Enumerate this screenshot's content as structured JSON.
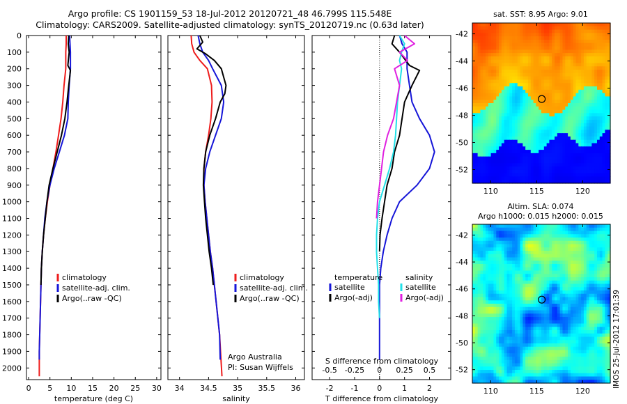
{
  "header": {
    "line1": "Argo profile: CS 1901159_53 18-Jul-2012 20120721_48 46.799S 115.548E",
    "line2": "Climatology: CARS2009. Satellite-adjusted climatology: synTS_20120719.nc (0.63d later)"
  },
  "stamp": "IMOS 25-Jul-2012 17:01:39",
  "colors": {
    "climatology": "#ee1c1c",
    "satellite": "#1515d8",
    "argo": "#000000",
    "sal_satellite": "#22e0e8",
    "sal_argo": "#e020e0"
  },
  "chart_data": [
    {
      "type": "line",
      "name": "temperature-panel",
      "xlabel": "temperature (deg C)",
      "ylabel": "",
      "xlim": [
        -0.5,
        31
      ],
      "ylim": [
        2070,
        0
      ],
      "xticks": [
        0,
        5,
        10,
        15,
        20,
        25,
        30
      ],
      "yticks": [
        0,
        100,
        200,
        300,
        400,
        500,
        600,
        700,
        800,
        900,
        1000,
        1100,
        1200,
        1300,
        1400,
        1500,
        1600,
        1700,
        1800,
        1900,
        2000
      ],
      "legend": [
        "climatology",
        "satellite-adj. clim.",
        "Argo(..raw -QC)"
      ],
      "series": [
        {
          "name": "climatology",
          "color": "#ee1c1c",
          "x": [
            8.8,
            8.8,
            8.7,
            8.7,
            8.3,
            8.0,
            7.6,
            7.0,
            6.4,
            5.7,
            5.0,
            4.4,
            3.9,
            3.5,
            3.2,
            3.0,
            2.9,
            2.8,
            2.7,
            2.6,
            2.5,
            2.5
          ],
          "y": [
            0,
            50,
            100,
            200,
            300,
            400,
            500,
            600,
            700,
            800,
            900,
            1000,
            1100,
            1200,
            1300,
            1400,
            1500,
            1600,
            1700,
            1800,
            1900,
            2050
          ]
        },
        {
          "name": "satellite-adj. clim.",
          "color": "#1515d8",
          "x": [
            9.6,
            9.7,
            9.8,
            9.8,
            9.5,
            9.3,
            9.2,
            8.4,
            7.2,
            6.0,
            5.0,
            4.3,
            3.8,
            3.5,
            3.2,
            3.0,
            2.9,
            2.8,
            2.7,
            2.6,
            2.5,
            2.5
          ],
          "y": [
            0,
            50,
            100,
            200,
            300,
            400,
            500,
            600,
            700,
            800,
            900,
            1000,
            1100,
            1200,
            1300,
            1400,
            1500,
            1600,
            1700,
            1800,
            1900,
            1950
          ]
        },
        {
          "name": "Argo(..raw -QC)",
          "color": "#000000",
          "x": [
            9.4,
            9.3,
            9.5,
            9.2,
            9.6,
            9.8,
            9.4,
            9.0,
            8.5,
            7.7,
            6.7,
            5.7,
            4.8,
            4.3,
            3.9,
            3.5,
            3.2,
            3.0,
            2.9
          ],
          "y": [
            0,
            50,
            100,
            180,
            200,
            210,
            300,
            400,
            500,
            600,
            700,
            800,
            900,
            1000,
            1100,
            1200,
            1300,
            1400,
            1500
          ]
        }
      ]
    },
    {
      "type": "line",
      "name": "salinity-panel",
      "xlabel": "salinity",
      "ylabel": "",
      "xlim": [
        33.8,
        36.15
      ],
      "ylim": [
        2070,
        0
      ],
      "xticks": [
        34,
        34.5,
        35,
        35.5,
        36
      ],
      "legend": [
        "climatology",
        "satellite-adj. clim.",
        "Argo(..raw -QC)"
      ],
      "series": [
        {
          "name": "climatology",
          "color": "#ee1c1c",
          "x": [
            34.2,
            34.21,
            34.25,
            34.35,
            34.48,
            34.55,
            34.56,
            34.54,
            34.5,
            34.45,
            34.42,
            34.42,
            34.44,
            34.47,
            34.5,
            34.53,
            34.57,
            34.6,
            34.63,
            34.66,
            34.69,
            34.73
          ],
          "y": [
            0,
            50,
            100,
            150,
            200,
            300,
            400,
            500,
            600,
            700,
            800,
            900,
            1000,
            1100,
            1200,
            1300,
            1400,
            1500,
            1600,
            1700,
            1800,
            2050
          ]
        },
        {
          "name": "satellite-adj. clim.",
          "color": "#1515d8",
          "x": [
            34.32,
            34.35,
            34.4,
            34.5,
            34.57,
            34.72,
            34.76,
            34.72,
            34.62,
            34.52,
            34.45,
            34.42,
            34.44,
            34.47,
            34.5,
            34.53,
            34.57,
            34.6,
            34.63,
            34.66,
            34.69,
            34.7
          ],
          "y": [
            0,
            50,
            100,
            150,
            200,
            300,
            400,
            500,
            600,
            700,
            800,
            900,
            1000,
            1100,
            1200,
            1300,
            1400,
            1500,
            1600,
            1700,
            1800,
            1950
          ]
        },
        {
          "name": "Argo(..raw -QC)",
          "color": "#000000",
          "x": [
            34.35,
            34.4,
            34.3,
            34.45,
            34.6,
            34.72,
            34.8,
            34.78,
            34.7,
            34.62,
            34.52,
            34.45,
            34.42,
            34.41,
            34.43,
            34.45,
            34.48,
            34.51,
            34.55,
            34.58
          ],
          "y": [
            0,
            40,
            80,
            110,
            150,
            200,
            300,
            350,
            400,
            500,
            600,
            700,
            800,
            900,
            1000,
            1100,
            1200,
            1300,
            1400,
            1500
          ]
        }
      ]
    },
    {
      "type": "line",
      "name": "difference-panel",
      "xlabel": "T difference from climatology",
      "x2label": "S difference from climatology",
      "xlim": [
        -2.7,
        2.85
      ],
      "ylim": [
        2070,
        0
      ],
      "xticks": [
        -2,
        -1,
        0,
        1,
        2
      ],
      "x2ticks": [
        -0.5,
        -0.25,
        0,
        0.25,
        0.5
      ],
      "legend_temperature": {
        "title": "temperature",
        "items": [
          "satellite",
          "Argo(-adj)"
        ]
      },
      "legend_salinity": {
        "title": "salinity",
        "items": [
          "satellite",
          "Argo(-adj)"
        ]
      },
      "series": [
        {
          "name": "temperature satellite",
          "color": "#1515d8",
          "x": [
            0.8,
            0.9,
            1.1,
            1.1,
            1.2,
            1.3,
            1.6,
            2.0,
            2.2,
            2.0,
            1.5,
            0.8,
            0.5,
            0.3,
            0.15,
            0.05,
            0.0,
            0.0,
            0.0,
            0.0,
            0.0,
            0.0
          ],
          "y": [
            0,
            50,
            100,
            200,
            300,
            400,
            500,
            600,
            700,
            800,
            900,
            1000,
            1100,
            1200,
            1300,
            1400,
            1500,
            1600,
            1700,
            1800,
            1900,
            1950
          ]
        },
        {
          "name": "temperature Argo(-adj)",
          "color": "#000000",
          "x": [
            0.6,
            0.5,
            0.8,
            1.2,
            1.6,
            1.3,
            1.0,
            0.9,
            0.8,
            0.6,
            0.5,
            0.3,
            0.2,
            0.1,
            0.02,
            0.0
          ],
          "y": [
            0,
            50,
            100,
            180,
            210,
            300,
            400,
            500,
            600,
            700,
            800,
            900,
            1000,
            1100,
            1200,
            1300
          ]
        },
        {
          "name": "salinity satellite",
          "color": "#22e0e8",
          "x": [
            0.2,
            0.25,
            0.22,
            0.2,
            0.22,
            0.2,
            0.18,
            0.17,
            0.16,
            0.14,
            0.1,
            0.05,
            0.0,
            -0.02,
            -0.03,
            -0.03,
            -0.02,
            -0.01,
            -0.01,
            0.0
          ],
          "y": [
            0,
            50,
            100,
            150,
            200,
            300,
            400,
            500,
            600,
            700,
            800,
            900,
            1000,
            1100,
            1200,
            1300,
            1400,
            1500,
            1600,
            1700
          ]
        },
        {
          "name": "salinity Argo(-adj)",
          "color": "#e020e0",
          "x": [
            0.25,
            0.35,
            0.2,
            0.28,
            0.15,
            0.2,
            0.17,
            0.14,
            0.08,
            0.04,
            0.02,
            0.0,
            -0.02,
            -0.03
          ],
          "y": [
            0,
            50,
            100,
            150,
            200,
            300,
            400,
            500,
            600,
            700,
            800,
            900,
            1000,
            1100
          ]
        }
      ]
    },
    {
      "type": "heatmap",
      "name": "sst-map",
      "title": "sat. SST: 8.95 Argo: 9.01",
      "xlim": [
        108,
        123
      ],
      "ylim": [
        -53,
        -41.2
      ],
      "xticks": [
        110,
        115,
        120
      ],
      "yticks": [
        -42,
        -44,
        -46,
        -48,
        -50,
        -52
      ],
      "marker": {
        "lon": 115.548,
        "lat": -46.799
      }
    },
    {
      "type": "heatmap",
      "name": "sla-map",
      "title": "Altim. SLA: 0.074",
      "subtitle": "Argo h1000: 0.015 h2000: 0.015",
      "xlim": [
        108,
        123
      ],
      "ylim": [
        -53,
        -41.2
      ],
      "xticks": [
        110,
        115,
        120
      ],
      "yticks": [
        -42,
        -44,
        -46,
        -48,
        -50,
        -52
      ],
      "marker": {
        "lon": 115.548,
        "lat": -46.799
      }
    }
  ]
}
